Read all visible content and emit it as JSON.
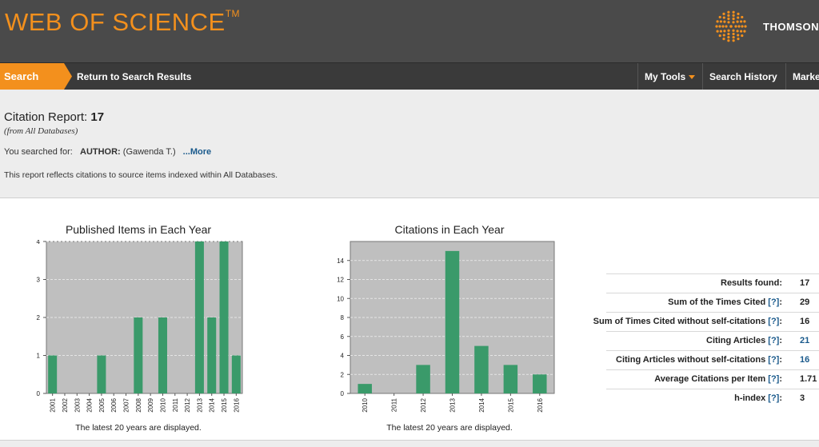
{
  "header": {
    "logo": "WEB OF SCIENCE",
    "logo_tm": "TM",
    "publisher": "THOMSON"
  },
  "nav": {
    "search_tab": "Search",
    "return_link": "Return to Search Results",
    "my_tools": "My Tools",
    "search_history": "Search History",
    "marked": "Marke"
  },
  "report": {
    "title_prefix": "Citation Report:",
    "count": "17",
    "from": "(from All Databases)",
    "searched_label": "You searched for:",
    "searched_field": "AUTHOR:",
    "searched_value": "(Gawenda T.)",
    "more": "...More",
    "reflects": "This report reflects citations to source items indexed within All Databases."
  },
  "colors": {
    "accent": "#f3901d",
    "bar": "#3a9a6a",
    "plot_bg": "#bfbfbf",
    "link": "#1a5a8c"
  },
  "chart_data": [
    {
      "type": "bar",
      "title": "Published Items in Each Year",
      "categories": [
        "2001",
        "2002",
        "2003",
        "2004",
        "2005",
        "2006",
        "2007",
        "2008",
        "2009",
        "2010",
        "2011",
        "2012",
        "2013",
        "2014",
        "2015",
        "2016"
      ],
      "values": [
        1,
        0,
        0,
        0,
        1,
        0,
        0,
        2,
        0,
        2,
        0,
        0,
        4,
        2,
        4,
        1
      ],
      "yticks": [
        0,
        1,
        2,
        3,
        4
      ],
      "ylim": [
        0,
        4
      ],
      "footer": "The latest 20 years are displayed."
    },
    {
      "type": "bar",
      "title": "Citations in Each Year",
      "categories": [
        "2010",
        "2011",
        "2012",
        "2013",
        "2014",
        "2015",
        "2016"
      ],
      "values": [
        1,
        0,
        3,
        15,
        5,
        3,
        2
      ],
      "yticks": [
        0,
        2,
        4,
        6,
        8,
        10,
        12,
        14
      ],
      "ylim": [
        0,
        16
      ],
      "footer": "The latest 20 years are displayed."
    }
  ],
  "stats": [
    {
      "label": "Results found:",
      "help": "",
      "value": "17",
      "link": false
    },
    {
      "label": "Sum of the Times Cited",
      "help": "[?]",
      "value": "29",
      "link": false
    },
    {
      "label": "Sum of Times Cited without self-citations",
      "help": "[?]",
      "value": "16",
      "link": false
    },
    {
      "label": "Citing Articles",
      "help": "[?]",
      "value": "21",
      "link": true
    },
    {
      "label": "Citing Articles without self-citations",
      "help": "[?]",
      "value": "16",
      "link": true
    },
    {
      "label": "Average Citations per Item",
      "help": "[?]",
      "value": "1.71",
      "link": false
    },
    {
      "label": "h-index",
      "help": "[?]",
      "value": "3",
      "link": false
    }
  ]
}
